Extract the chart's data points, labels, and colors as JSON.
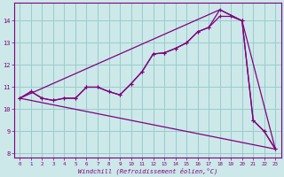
{
  "background_color": "#cce8e8",
  "grid_color": "#99cccc",
  "line_color": "#800080",
  "xlim": [
    -0.5,
    23.5
  ],
  "ylim": [
    7.8,
    14.8
  ],
  "yticks": [
    8,
    9,
    10,
    11,
    12,
    13,
    14
  ],
  "xticks": [
    0,
    1,
    2,
    3,
    4,
    5,
    6,
    7,
    8,
    9,
    10,
    11,
    12,
    13,
    14,
    15,
    16,
    17,
    18,
    19,
    20,
    21,
    22,
    23
  ],
  "xlabel": "Windchill (Refroidissement éolien,°C)",
  "line1_x": [
    0,
    1,
    2,
    3,
    4,
    5,
    6,
    7,
    8,
    9,
    10,
    11,
    12,
    13,
    14,
    15,
    16,
    17,
    18,
    20,
    21,
    22,
    23
  ],
  "line1_y": [
    10.5,
    10.8,
    10.5,
    10.4,
    10.5,
    10.5,
    11.0,
    11.0,
    10.8,
    10.65,
    11.15,
    11.7,
    12.5,
    12.55,
    12.75,
    13.0,
    13.5,
    13.7,
    14.5,
    14.0,
    9.5,
    9.0,
    8.2
  ],
  "line2_x": [
    0,
    1,
    2,
    3,
    4,
    5,
    6,
    7,
    8,
    9,
    10,
    11,
    12,
    13,
    14,
    15,
    16,
    17,
    18,
    19,
    20,
    21,
    22,
    23
  ],
  "line2_y": [
    10.5,
    10.8,
    10.5,
    10.4,
    10.5,
    10.5,
    11.0,
    11.0,
    10.8,
    10.65,
    11.15,
    11.7,
    12.5,
    12.55,
    12.75,
    13.0,
    13.5,
    13.7,
    14.2,
    14.2,
    14.0,
    9.5,
    9.0,
    8.2
  ],
  "line3_x": [
    0,
    18,
    20,
    23
  ],
  "line3_y": [
    10.5,
    14.5,
    14.0,
    8.2
  ],
  "line4_x": [
    0,
    23
  ],
  "line4_y": [
    10.5,
    8.2
  ]
}
